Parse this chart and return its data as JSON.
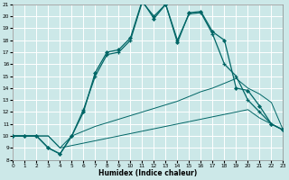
{
  "xlabel": "Humidex (Indice chaleur)",
  "bg_color": "#cce8e8",
  "line_color": "#006666",
  "grid_color": "#ffffff",
  "xlim": [
    0,
    23
  ],
  "ylim": [
    8,
    21
  ],
  "xtick_vals": [
    0,
    1,
    2,
    3,
    4,
    5,
    6,
    7,
    8,
    9,
    10,
    11,
    12,
    13,
    14,
    15,
    16,
    17,
    18,
    19,
    20,
    21,
    22,
    23
  ],
  "ytick_vals": [
    8,
    9,
    10,
    11,
    12,
    13,
    14,
    15,
    16,
    17,
    18,
    19,
    20,
    21
  ],
  "line_bottom_x": [
    0,
    1,
    2,
    3,
    4,
    5,
    6,
    7,
    8,
    9,
    10,
    11,
    12,
    13,
    14,
    15,
    16,
    17,
    18,
    19,
    20,
    21,
    22,
    23
  ],
  "line_bottom_y": [
    10,
    10,
    10,
    10,
    9,
    9.2,
    9.4,
    9.6,
    9.8,
    10,
    10.2,
    10.4,
    10.6,
    10.8,
    11,
    11.2,
    11.4,
    11.6,
    11.8,
    12,
    12.2,
    11.5,
    11,
    10.5
  ],
  "line_mid_x": [
    0,
    1,
    2,
    3,
    4,
    5,
    6,
    7,
    8,
    9,
    10,
    11,
    12,
    13,
    14,
    15,
    16,
    17,
    18,
    19,
    20,
    21,
    22,
    23
  ],
  "line_mid_y": [
    10,
    10,
    10,
    10,
    9,
    10,
    10.4,
    10.8,
    11.1,
    11.4,
    11.7,
    12,
    12.3,
    12.6,
    12.9,
    13.3,
    13.7,
    14,
    14.4,
    14.8,
    14,
    13.5,
    12.8,
    10.5
  ],
  "line_peak1_x": [
    0,
    1,
    2,
    3,
    4,
    5,
    6,
    7,
    8,
    9,
    10,
    11,
    12,
    13,
    14,
    15,
    16,
    17,
    18,
    19,
    20,
    21,
    22,
    23
  ],
  "line_peak1_y": [
    10,
    10,
    10,
    9,
    8.5,
    10,
    12.2,
    15,
    16.8,
    17,
    18,
    21.2,
    20,
    21,
    18,
    20.2,
    20.3,
    18.5,
    16,
    15,
    13,
    12,
    11,
    10.5
  ],
  "line_peak2_x": [
    0,
    1,
    2,
    3,
    4,
    5,
    6,
    7,
    8,
    9,
    10,
    11,
    12,
    13,
    14,
    15,
    16,
    17,
    18,
    19,
    20,
    21,
    22,
    23
  ],
  "line_peak2_y": [
    10,
    10,
    10,
    9,
    8.5,
    10,
    12,
    15.3,
    17,
    17.2,
    18.2,
    21.3,
    19.8,
    21,
    17.8,
    20.3,
    20.4,
    18.7,
    18,
    14,
    13.8,
    12.5,
    11,
    10.5
  ]
}
